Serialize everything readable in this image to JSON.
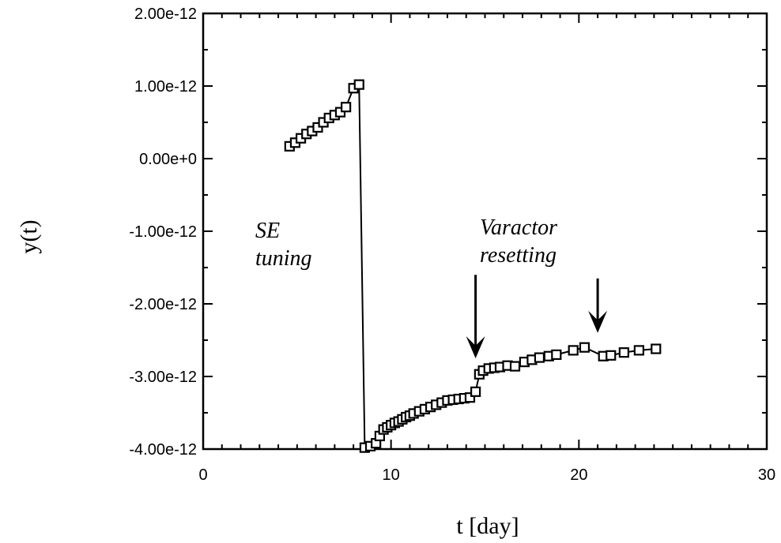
{
  "chart_data": {
    "type": "scatter",
    "title": "",
    "xlabel": "t [day]",
    "ylabel": "y(t)",
    "xlim": [
      0,
      30
    ],
    "ylim": [
      -4e-12,
      2e-12
    ],
    "x_ticks": [
      0,
      10,
      20,
      30
    ],
    "x_tick_labels": [
      "0",
      "10",
      "20",
      "30"
    ],
    "y_ticks": [
      2e-12,
      1e-12,
      0,
      -1e-12,
      -2e-12,
      -3e-12,
      -4e-12
    ],
    "y_tick_labels": [
      "2.00e-12",
      "1.00e-12",
      "0.00e+0",
      "-1.00e-12",
      "-2.00e-12",
      "-3.00e-12",
      "-4.00e-12"
    ],
    "grid": false,
    "line": true,
    "marker": "square",
    "series": [
      {
        "x": [
          4.6,
          4.9,
          5.2,
          5.5,
          5.8,
          6.1,
          6.4,
          6.7,
          7.0,
          7.3,
          7.6,
          8.0,
          8.3,
          8.6,
          8.9,
          9.2,
          9.4,
          9.6,
          9.8,
          10.0,
          10.2,
          10.4,
          10.6,
          10.8,
          11.0,
          11.2,
          11.5,
          11.8,
          12.1,
          12.4,
          12.7,
          13.0,
          13.3,
          13.6,
          13.9,
          14.2,
          14.5,
          14.7,
          14.9,
          15.2,
          15.5,
          15.8,
          16.2,
          16.6,
          17.1,
          17.5,
          17.9,
          18.4,
          18.8,
          19.7,
          20.3,
          21.3,
          21.7,
          22.4,
          23.2,
          24.1
        ],
        "y": [
          1.7e-13,
          2.2e-13,
          2.8e-13,
          3.4e-13,
          3.8e-13,
          4.3e-13,
          5e-13,
          5.6e-13,
          6e-13,
          6.4e-13,
          7.1e-13,
          9.7e-13,
          1.02e-12,
          -3.98e-12,
          -3.96e-12,
          -3.92e-12,
          -3.82e-12,
          -3.73e-12,
          -3.7e-12,
          -3.67e-12,
          -3.64e-12,
          -3.62e-12,
          -3.59e-12,
          -3.56e-12,
          -3.54e-12,
          -3.51e-12,
          -3.48e-12,
          -3.45e-12,
          -3.42e-12,
          -3.39e-12,
          -3.36e-12,
          -3.33e-12,
          -3.32e-12,
          -3.31e-12,
          -3.3e-12,
          -3.29e-12,
          -3.21e-12,
          -2.97e-12,
          -2.92e-12,
          -2.89e-12,
          -2.88e-12,
          -2.87e-12,
          -2.85e-12,
          -2.86e-12,
          -2.8e-12,
          -2.77e-12,
          -2.74e-12,
          -2.72e-12,
          -2.7e-12,
          -2.64e-12,
          -2.6e-12,
          -2.72e-12,
          -2.71e-12,
          -2.67e-12,
          -2.64e-12,
          -2.62e-12
        ]
      }
    ],
    "annotations": [
      {
        "lines": [
          "SE",
          "tuning"
        ]
      },
      {
        "lines": [
          "Varactor",
          "resetting"
        ]
      }
    ],
    "arrows": [
      {
        "x": 14.5,
        "y_from": -1.6e-12,
        "y_to": -2.75e-12
      },
      {
        "x": 21.0,
        "y_from": -1.65e-12,
        "y_to": -2.4e-12
      }
    ]
  }
}
